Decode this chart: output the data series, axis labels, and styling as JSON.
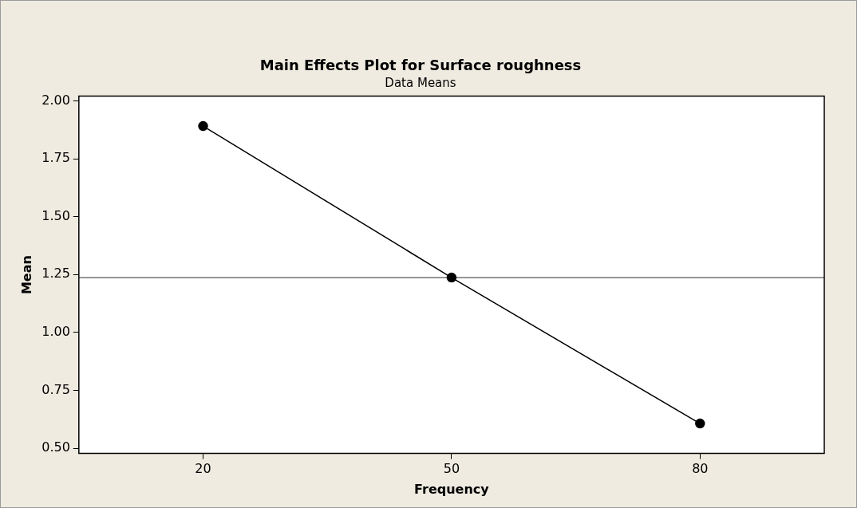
{
  "chart_data": {
    "type": "line",
    "title": "Main Effects Plot for Surface roughness",
    "subtitle": "Data Means",
    "xlabel": "Frequency",
    "ylabel": "Mean",
    "categories": [
      "20",
      "50",
      "80"
    ],
    "series": [
      {
        "color": "#000000",
        "values": [
          1.891,
          1.237,
          0.607
        ]
      }
    ],
    "ylim": [
      0.478,
      2.02
    ],
    "yticks": [
      {
        "value": 0.5,
        "label": "0.50"
      },
      {
        "value": 0.75,
        "label": "0.75"
      },
      {
        "value": 1.0,
        "label": "1.00"
      },
      {
        "value": 1.25,
        "label": "1.25"
      },
      {
        "value": 1.5,
        "label": "1.50"
      },
      {
        "value": 1.75,
        "label": "1.75"
      },
      {
        "value": 2.0,
        "label": "2.00"
      }
    ],
    "ref_lines": [
      {
        "axis": "y",
        "value": 1.237,
        "color": "#555555"
      }
    ],
    "marker": "circle",
    "line_style": "solid",
    "grid": false,
    "legend": false
  }
}
